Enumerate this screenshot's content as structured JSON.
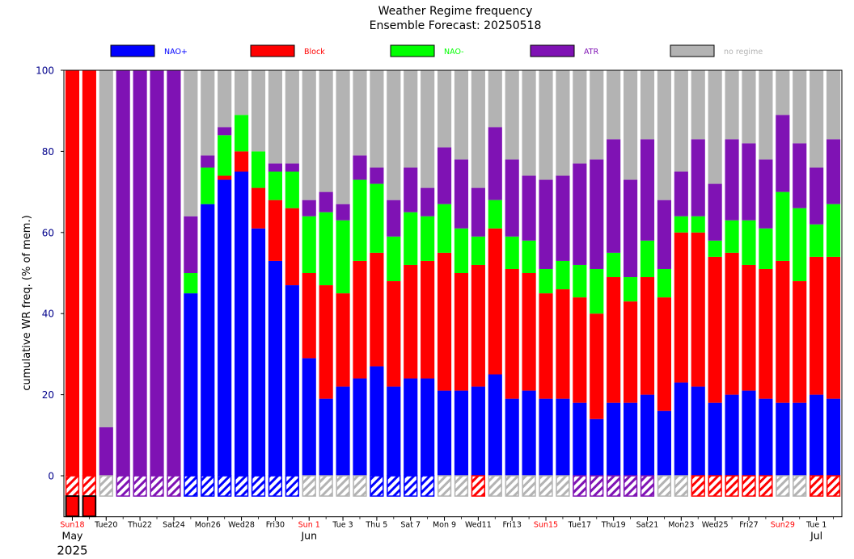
{
  "chart_data": {
    "type": "bar",
    "stacked": true,
    "title": "Weather Regime frequency",
    "subtitle": "Ensemble Forecast: 20250518",
    "ylabel": "cumulative WR freq. (% of mem.)",
    "ylim": [
      0,
      100
    ],
    "yticks": [
      0,
      20,
      40,
      60,
      80,
      100
    ],
    "grid": false,
    "legend_position": "top",
    "colors": {
      "NAO+": "#0000ff",
      "Block": "#ff0000",
      "NAO-": "#00ff00",
      "ATR": "#7f12b4",
      "no regime": "#b3b3b3"
    },
    "series": [
      {
        "name": "NAO+",
        "values": [
          0,
          0,
          0,
          0,
          0,
          0,
          0,
          45,
          67,
          73,
          75,
          61,
          53,
          47,
          29,
          19,
          22,
          24,
          27,
          22,
          24,
          24,
          21,
          21,
          22,
          25,
          19,
          21,
          19,
          19,
          18,
          14,
          18,
          18,
          20,
          16,
          23,
          22,
          18,
          20,
          21,
          19,
          18,
          18,
          20,
          19
        ]
      },
      {
        "name": "Block",
        "values": [
          100,
          100,
          0,
          0,
          0,
          0,
          0,
          0,
          0,
          1,
          5,
          10,
          15,
          19,
          21,
          28,
          23,
          29,
          28,
          26,
          28,
          29,
          34,
          29,
          30,
          36,
          32,
          29,
          26,
          27,
          26,
          26,
          31,
          25,
          29,
          28,
          37,
          38,
          36,
          35,
          31,
          32,
          35,
          30,
          34,
          35
        ]
      },
      {
        "name": "NAO-",
        "values": [
          0,
          0,
          0,
          0,
          0,
          0,
          0,
          5,
          9,
          10,
          9,
          9,
          7,
          9,
          14,
          18,
          18,
          20,
          17,
          11,
          13,
          11,
          12,
          11,
          7,
          7,
          8,
          8,
          6,
          7,
          8,
          11,
          6,
          6,
          9,
          7,
          4,
          4,
          4,
          8,
          11,
          10,
          17,
          18,
          8,
          13
        ]
      },
      {
        "name": "ATR",
        "values": [
          0,
          0,
          12,
          100,
          100,
          100,
          100,
          14,
          3,
          2,
          0,
          0,
          2,
          2,
          4,
          5,
          4,
          6,
          4,
          9,
          11,
          7,
          14,
          17,
          12,
          18,
          19,
          16,
          22,
          21,
          25,
          27,
          28,
          24,
          25,
          17,
          11,
          19,
          14,
          20,
          19,
          17,
          19,
          16,
          14,
          16
        ]
      },
      {
        "name": "no regime",
        "values": [
          0,
          0,
          88,
          0,
          0,
          0,
          0,
          36,
          21,
          14,
          11,
          20,
          23,
          23,
          32,
          30,
          33,
          21,
          24,
          32,
          24,
          29,
          19,
          22,
          29,
          14,
          22,
          26,
          27,
          26,
          23,
          22,
          17,
          27,
          17,
          32,
          25,
          17,
          28,
          17,
          18,
          22,
          11,
          18,
          24,
          17
        ]
      }
    ],
    "dominant_regime": [
      "Block",
      "Block",
      "no regime",
      "ATR",
      "ATR",
      "ATR",
      "ATR",
      "NAO+",
      "NAO+",
      "NAO+",
      "NAO+",
      "NAO+",
      "NAO+",
      "NAO+",
      "no regime",
      "no regime",
      "no regime",
      "no regime",
      "NAO+",
      "NAO+",
      "NAO+",
      "NAO+",
      "no regime",
      "no regime",
      "Block",
      "no regime",
      "no regime",
      "no regime",
      "no regime",
      "no regime",
      "ATR",
      "ATR",
      "ATR",
      "ATR",
      "ATR",
      "no regime",
      "no regime",
      "Block",
      "Block",
      "Block",
      "Block",
      "Block",
      "no regime",
      "no regime",
      "Block",
      "Block"
    ],
    "observed_regime": [
      "Block",
      "Block"
    ],
    "x_tick_labels": [
      {
        "label": "Sun18",
        "index": 0,
        "color": "#ff0000"
      },
      {
        "label": "Tue20",
        "index": 2,
        "color": "#000000"
      },
      {
        "label": "Thu22",
        "index": 4,
        "color": "#000000"
      },
      {
        "label": "Sat24",
        "index": 6,
        "color": "#000000"
      },
      {
        "label": "Mon26",
        "index": 8,
        "color": "#000000"
      },
      {
        "label": "Wed28",
        "index": 10,
        "color": "#000000"
      },
      {
        "label": "Fri30",
        "index": 12,
        "color": "#000000"
      },
      {
        "label": "Sun 1",
        "index": 14,
        "color": "#ff0000"
      },
      {
        "label": "Tue 3",
        "index": 16,
        "color": "#000000"
      },
      {
        "label": "Thu 5",
        "index": 18,
        "color": "#000000"
      },
      {
        "label": "Sat 7",
        "index": 20,
        "color": "#000000"
      },
      {
        "label": "Mon 9",
        "index": 22,
        "color": "#000000"
      },
      {
        "label": "Wed11",
        "index": 24,
        "color": "#000000"
      },
      {
        "label": "Fri13",
        "index": 26,
        "color": "#000000"
      },
      {
        "label": "Sun15",
        "index": 28,
        "color": "#ff0000"
      },
      {
        "label": "Tue17",
        "index": 30,
        "color": "#000000"
      },
      {
        "label": "Thu19",
        "index": 32,
        "color": "#000000"
      },
      {
        "label": "Sat21",
        "index": 34,
        "color": "#000000"
      },
      {
        "label": "Mon23",
        "index": 36,
        "color": "#000000"
      },
      {
        "label": "Wed25",
        "index": 38,
        "color": "#000000"
      },
      {
        "label": "Fri27",
        "index": 40,
        "color": "#000000"
      },
      {
        "label": "Sun29",
        "index": 42,
        "color": "#ff0000"
      },
      {
        "label": "Tue 1",
        "index": 44,
        "color": "#000000"
      }
    ],
    "month_labels": [
      {
        "label": "May",
        "index": 0
      },
      {
        "label": "Jun",
        "index": 14
      },
      {
        "label": "Jul",
        "index": 44
      }
    ],
    "year_label": "2025"
  }
}
